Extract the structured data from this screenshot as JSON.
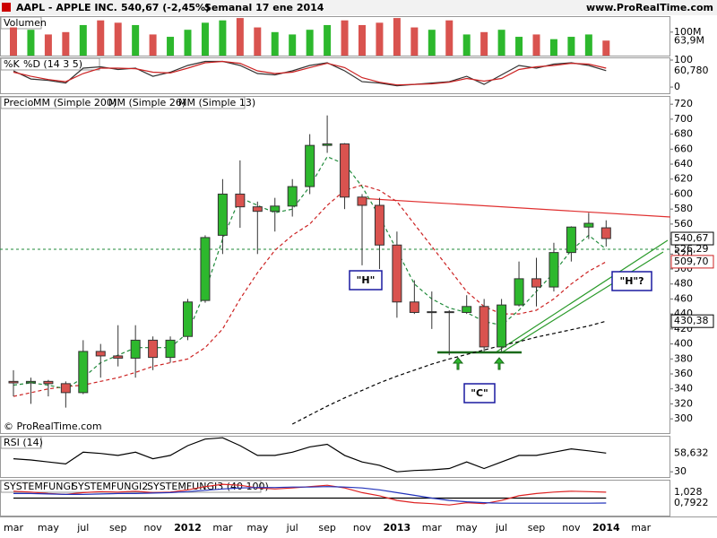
{
  "chart_data": {
    "type": "candlestick",
    "title": "AAPL - APPLE INC.",
    "last_change": "540,67 (-2,45%)",
    "period": "Semanal 17 ene 2014",
    "source": "www.ProRealTime.com",
    "copyright": "© ProRealTime.com",
    "categories": [
      "mar",
      null,
      "may",
      null,
      "jul",
      null,
      "sep",
      null,
      "nov",
      null,
      "2012",
      null,
      "mar",
      null,
      "may",
      null,
      "jul",
      null,
      "sep",
      null,
      "nov",
      null,
      "2013",
      null,
      "mar",
      null,
      "may",
      null,
      "jul",
      null,
      "sep",
      null,
      "nov",
      null,
      "2014",
      null,
      "mar"
    ],
    "price": {
      "label": "Precio",
      "up_color": "#2db82d",
      "down_color": "#d9534f",
      "open": [
        350,
        348,
        350,
        347,
        335,
        390,
        384,
        381,
        405,
        382,
        410,
        458,
        545,
        600,
        583,
        577,
        584,
        610,
        665,
        667,
        596,
        585,
        532,
        456,
        442,
        443,
        442,
        450,
        396,
        452,
        487,
        476,
        522,
        556,
        555,
        null,
        null
      ],
      "high": [
        365,
        355,
        352,
        350,
        405,
        400,
        425,
        425,
        410,
        410,
        460,
        545,
        620,
        645,
        590,
        595,
        620,
        680,
        705,
        668,
        600,
        595,
        550,
        485,
        470,
        445,
        465,
        460,
        460,
        510,
        515,
        535,
        557,
        575,
        565,
        null,
        null
      ],
      "low": [
        330,
        320,
        330,
        315,
        333,
        355,
        370,
        355,
        365,
        375,
        405,
        455,
        520,
        555,
        520,
        550,
        570,
        600,
        655,
        580,
        505,
        500,
        435,
        440,
        420,
        385,
        440,
        390,
        390,
        450,
        450,
        470,
        510,
        540,
        530,
        null,
        null
      ],
      "close": [
        348,
        350,
        347,
        335,
        390,
        384,
        381,
        405,
        382,
        405,
        456,
        542,
        600,
        583,
        577,
        584,
        610,
        665,
        667,
        596,
        585,
        532,
        456,
        442,
        443,
        442,
        450,
        396,
        452,
        487,
        476,
        522,
        556,
        561,
        540.67,
        null,
        null
      ],
      "ylim": [
        281,
        731
      ],
      "yticks": [
        300,
        320,
        340,
        360,
        380,
        400,
        420,
        440,
        460,
        480,
        500,
        520,
        540,
        560,
        580,
        600,
        620,
        640,
        660,
        680,
        700,
        720
      ],
      "moving_averages": [
        {
          "name": "MM (Simple 200)",
          "color": "#000000",
          "dash": "4 3",
          "values": [
            null,
            null,
            null,
            null,
            null,
            null,
            null,
            null,
            null,
            null,
            null,
            null,
            null,
            null,
            null,
            null,
            293,
            305,
            317,
            328,
            338,
            348,
            357,
            365,
            373,
            380,
            386,
            392,
            398,
            403,
            409,
            414,
            419,
            424,
            430.38,
            null,
            null
          ]
        },
        {
          "name": "MM (Simple 26)",
          "color": "#cc2222",
          "dash": "4 3",
          "values": [
            330,
            335,
            340,
            343,
            345,
            350,
            355,
            362,
            370,
            375,
            380,
            395,
            420,
            460,
            495,
            525,
            545,
            560,
            585,
            605,
            612,
            605,
            590,
            560,
            530,
            500,
            470,
            450,
            440,
            440,
            445,
            460,
            480,
            497,
            509.7,
            null,
            null
          ]
        },
        {
          "name": "MM (Simple 13)",
          "color": "#1f8a3a",
          "dash": "4 3",
          "values": [
            345,
            348,
            345,
            340,
            355,
            375,
            385,
            395,
            395,
            395,
            415,
            470,
            540,
            595,
            585,
            575,
            580,
            610,
            650,
            640,
            610,
            570,
            525,
            480,
            460,
            448,
            442,
            430,
            425,
            445,
            470,
            495,
            525,
            545,
            526.29,
            null,
            null
          ]
        }
      ],
      "markers": [
        {
          "value": 540.67,
          "label": "540,67",
          "color": "#000000",
          "box": true
        },
        {
          "value": 526.29,
          "label": "526,29",
          "color": "#1f8a3a",
          "box": false,
          "guide": true
        },
        {
          "value": 509.7,
          "label": "509,70",
          "color": "#cc2222",
          "box": true
        },
        {
          "value": 430.38,
          "label": "430,38",
          "color": "#000000",
          "box": true
        }
      ],
      "annotations": [
        "\"H\"",
        "\"H\"?",
        "\"C\""
      ]
    },
    "volume": {
      "label": "Volumen",
      "values": [
        120,
        110,
        90,
        100,
        130,
        150,
        140,
        130,
        90,
        80,
        110,
        140,
        150,
        160,
        120,
        100,
        90,
        110,
        130,
        150,
        130,
        140,
        160,
        120,
        110,
        150,
        90,
        100,
        110,
        80,
        90,
        70,
        80,
        90,
        63.9,
        null,
        null
      ],
      "ylim": [
        0,
        168
      ],
      "yticks": [
        {
          "value": 100,
          "label": "100M"
        }
      ],
      "marker": {
        "value": 63.9,
        "label": "63,9M"
      }
    },
    "stochastic": {
      "series": [
        {
          "name": "%K",
          "color": "#333333",
          "values": [
            60,
            30,
            25,
            15,
            70,
            75,
            65,
            70,
            40,
            55,
            80,
            95,
            95,
            80,
            50,
            45,
            60,
            80,
            90,
            60,
            20,
            15,
            5,
            10,
            15,
            20,
            40,
            10,
            45,
            80,
            70,
            85,
            90,
            80,
            60.78,
            null,
            null
          ]
        },
        {
          "name": "%D (14 3 5)",
          "color": "#cc2222",
          "values": [
            55,
            40,
            28,
            20,
            50,
            70,
            70,
            68,
            55,
            52,
            70,
            90,
            95,
            88,
            60,
            50,
            55,
            72,
            88,
            72,
            35,
            18,
            8,
            10,
            12,
            18,
            32,
            22,
            32,
            65,
            75,
            80,
            88,
            85,
            70,
            null,
            null
          ]
        }
      ],
      "ylim": [
        -23,
        110
      ],
      "yticks": [
        0,
        100
      ],
      "marker": {
        "value": 60.78,
        "label": "60,780"
      }
    },
    "rsi": {
      "label": "RSI (14)",
      "color": "#000000",
      "values": [
        50,
        48,
        45,
        42,
        60,
        58,
        55,
        60,
        50,
        55,
        70,
        80,
        82,
        70,
        55,
        55,
        60,
        68,
        72,
        55,
        45,
        40,
        30,
        32,
        33,
        35,
        45,
        35,
        45,
        55,
        55,
        60,
        65,
        62,
        58.632,
        null,
        null
      ],
      "ylim": [
        22,
        85
      ],
      "yticks": [
        30
      ],
      "marker": {
        "value": 58.632,
        "label": "58,632"
      }
    },
    "systemfungi": {
      "series": [
        {
          "name": "SYSTEMFUNGI",
          "color": "#000000",
          "values": [
            0.9,
            0.9,
            0.9,
            0.9,
            0.9,
            0.9,
            0.9,
            0.9,
            0.9,
            0.9,
            0.9,
            0.9,
            0.9,
            0.9,
            0.9,
            0.9,
            0.9,
            0.9,
            0.9,
            0.9,
            0.9,
            0.9,
            0.9,
            0.9,
            0.9,
            0.9,
            0.9,
            0.9,
            0.9,
            0.9,
            0.9,
            0.9,
            0.9,
            0.9,
            0.9,
            null,
            null
          ]
        },
        {
          "name": "SYSTEMFUNGI2",
          "color": "#dd2222",
          "values": [
            1.05,
            1.03,
            1.0,
            0.98,
            1.02,
            1.04,
            1.03,
            1.05,
            1.02,
            1.03,
            1.08,
            1.15,
            1.2,
            1.18,
            1.12,
            1.1,
            1.12,
            1.15,
            1.18,
            1.12,
            1.02,
            0.95,
            0.85,
            0.8,
            0.78,
            0.75,
            0.8,
            0.78,
            0.85,
            0.95,
            1.0,
            1.03,
            1.05,
            1.04,
            1.028,
            null,
            null
          ]
        },
        {
          "name": "SYSTEMFUNGI3 (40 100)",
          "color": "#2233bb",
          "values": [
            1.0,
            1.0,
            0.99,
            0.98,
            0.98,
            0.99,
            1.0,
            1.0,
            1.01,
            1.02,
            1.04,
            1.07,
            1.1,
            1.12,
            1.13,
            1.13,
            1.14,
            1.14,
            1.15,
            1.14,
            1.12,
            1.08,
            1.02,
            0.96,
            0.9,
            0.85,
            0.82,
            0.8,
            0.79,
            0.79,
            0.79,
            0.79,
            0.79,
            0.79,
            0.7922,
            null,
            null
          ]
        }
      ],
      "ylim": [
        0.52,
        1.3
      ],
      "markers": [
        {
          "value": 1.028,
          "label": "1,028"
        },
        {
          "value": 0.7922,
          "label": "0,7922"
        }
      ]
    }
  }
}
